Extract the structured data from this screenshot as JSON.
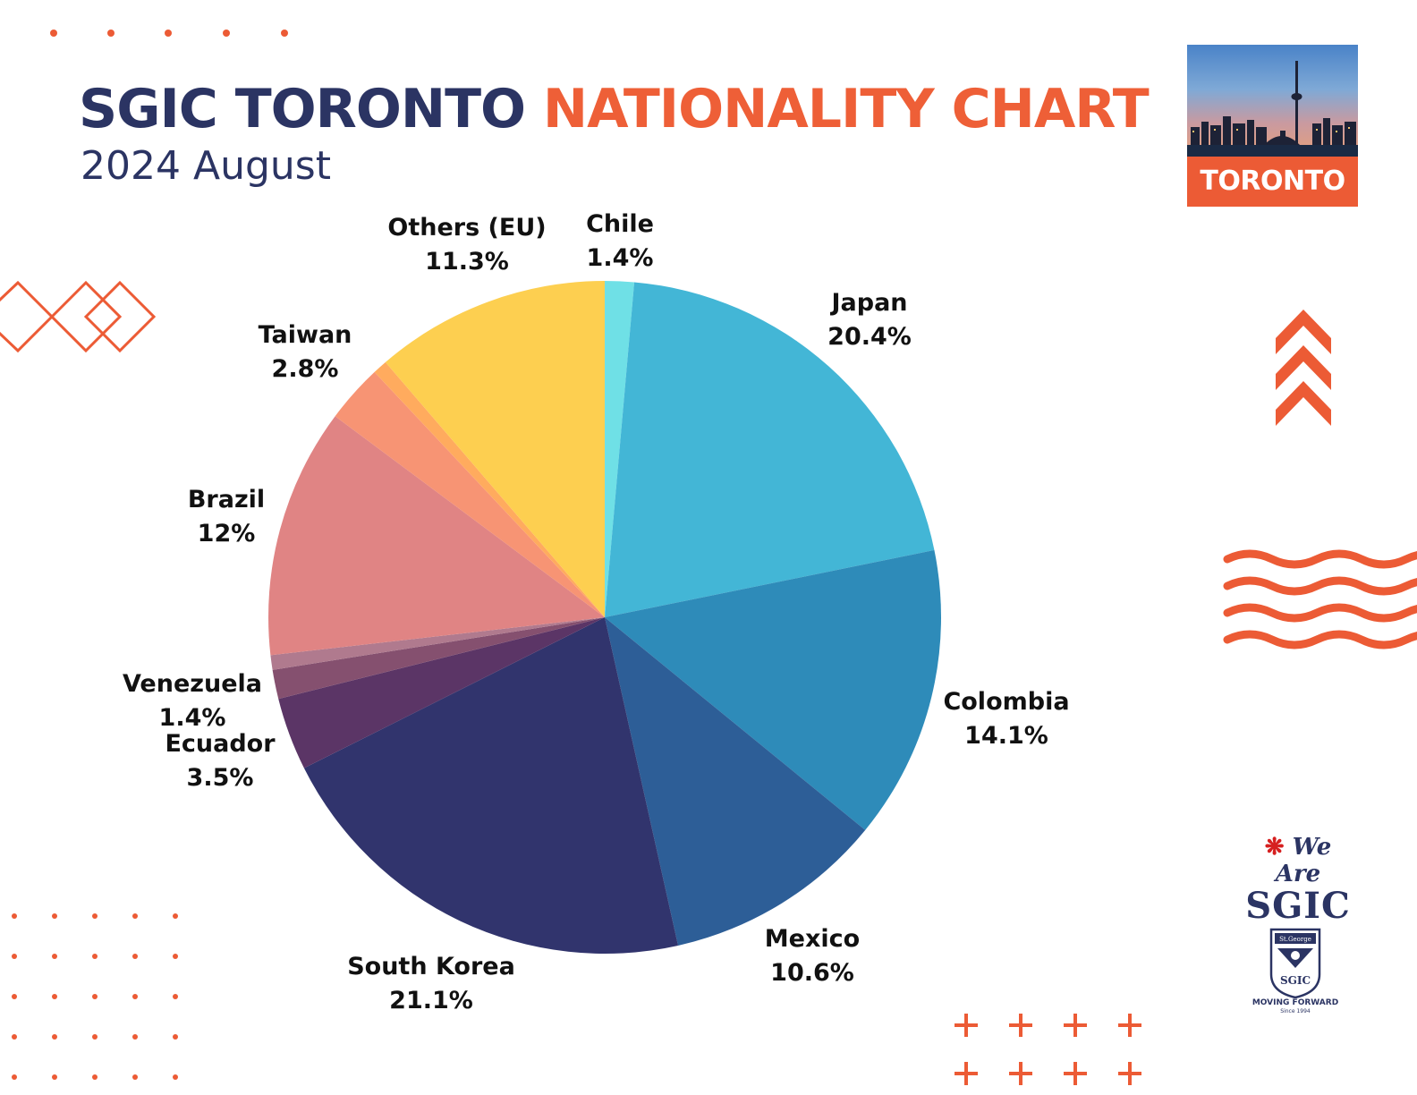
{
  "header": {
    "title_part1": "SGIC TORONTO",
    "title_part2": "NATIONALITY CHART",
    "subtitle": "2024 August"
  },
  "badge": {
    "city_label": "TORONTO"
  },
  "branding": {
    "we_are": "We Are",
    "sgic": "SGIC",
    "crest_top": "St.George",
    "crest_name": "SGIC",
    "motto": "MOVING FORWARD",
    "since": "Since 1994"
  },
  "colors": {
    "navy": "#2b3463",
    "accent": "#ee5f37"
  },
  "chart_data": {
    "type": "pie",
    "title": "SGIC TORONTO NATIONALITY CHART",
    "subtitle": "2024 August",
    "slices": [
      {
        "label": "Chile",
        "value_label": "1.4%",
        "value": 1.4,
        "color": "#6fe0e6",
        "labeled": true
      },
      {
        "label": "Japan",
        "value_label": "20.4%",
        "value": 20.4,
        "color": "#43b6d6",
        "labeled": true
      },
      {
        "label": "Colombia",
        "value_label": "14.1%",
        "value": 14.1,
        "color": "#2e8bb9",
        "labeled": true
      },
      {
        "label": "Mexico",
        "value_label": "10.6%",
        "value": 10.6,
        "color": "#2d5e97",
        "labeled": true
      },
      {
        "label": "South Korea",
        "value_label": "21.1%",
        "value": 21.1,
        "color": "#31346d",
        "labeled": true
      },
      {
        "label": "Ecuador",
        "value_label": "3.5%",
        "value": 3.5,
        "color": "#5b3566",
        "labeled": true
      },
      {
        "label": "Venezuela",
        "value_label": "1.4%",
        "value": 1.4,
        "color": "#85506f",
        "labeled": true
      },
      {
        "label": "",
        "value_label": "",
        "value": 0.7,
        "color": "#b07a8e",
        "labeled": false
      },
      {
        "label": "Brazil",
        "value_label": "12%",
        "value": 12,
        "color": "#e08484",
        "labeled": true
      },
      {
        "label": "Taiwan",
        "value_label": "2.8%",
        "value": 2.8,
        "color": "#f79474",
        "labeled": true
      },
      {
        "label": "",
        "value_label": "",
        "value": 0.7,
        "color": "#ffab5e",
        "labeled": false
      },
      {
        "label": "Others (EU)",
        "value_label": "11.3%",
        "value": 11.3,
        "color": "#fdcf50",
        "labeled": true
      }
    ]
  }
}
